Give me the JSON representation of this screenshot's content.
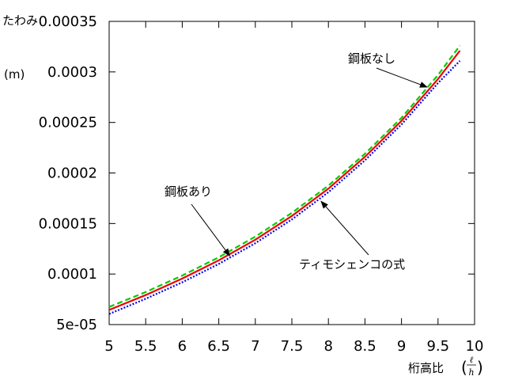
{
  "chart_data": {
    "type": "line",
    "xlabel": "桁高比",
    "xlabel_fraction": {
      "numerator": "ℓ",
      "denominator": "h"
    },
    "ylabel_lines": [
      "たわみ",
      "(m)"
    ],
    "xlim": [
      5,
      10
    ],
    "ylim": [
      5e-05,
      0.00035
    ],
    "xticks": [
      5,
      5.5,
      6,
      6.5,
      7,
      7.5,
      8,
      8.5,
      9,
      9.5,
      10
    ],
    "xtick_labels": [
      "5",
      "5.5",
      "6",
      "6.5",
      "7",
      "7.5",
      "8",
      "8.5",
      "9",
      "9.5",
      "10"
    ],
    "yticks": [
      5e-05,
      0.0001,
      0.00015,
      0.0002,
      0.00025,
      0.0003,
      0.00035
    ],
    "ytick_labels": [
      "5e-05",
      "0.0001",
      "0.00015",
      "0.0002",
      "0.00025",
      "0.0003",
      "0.00035"
    ],
    "grid": false,
    "series": [
      {
        "key": "no_plate",
        "color": "#00cc00",
        "dash": "dashed",
        "x": [
          5,
          5.5,
          6,
          6.5,
          7,
          7.5,
          8,
          8.5,
          9,
          9.5,
          9.8
        ],
        "y": [
          6.75e-05,
          8.22e-05,
          9.85e-05,
          0.0001166,
          0.000137,
          0.0001605,
          0.0001875,
          0.000219,
          0.0002545,
          0.000297,
          0.000326
        ]
      },
      {
        "key": "with_plate",
        "color": "#ee0000",
        "dash": "solid",
        "x": [
          5,
          5.5,
          6,
          6.5,
          7,
          7.5,
          8,
          8.5,
          9,
          9.5,
          9.8
        ],
        "y": [
          6.45e-05,
          7.92e-05,
          9.55e-05,
          0.0001136,
          0.000134,
          0.0001575,
          0.0001845,
          0.000216,
          0.0002515,
          0.000293,
          0.000321
        ]
      },
      {
        "key": "timoshenko",
        "color": "#0000ee",
        "dash": "dotted",
        "x": [
          5,
          5.5,
          6,
          6.5,
          7,
          7.5,
          8,
          8.5,
          9,
          9.5,
          9.8
        ],
        "y": [
          6.05e-05,
          7.55e-05,
          9.18e-05,
          0.00011,
          0.0001305,
          0.000154,
          0.000181,
          0.0002125,
          0.000248,
          0.000289,
          0.000311
        ]
      }
    ],
    "annotations": [
      {
        "key": "no_plate",
        "text": "鋼板なし",
        "arrow_to": [
          9.35,
          0.000285
        ]
      },
      {
        "key": "with_plate",
        "text": "鋼板あり",
        "arrow_to": [
          6.65,
          0.000118
        ]
      },
      {
        "key": "timoshenko",
        "text": "ティモシェンコの式",
        "arrow_to": [
          7.9,
          0.000172
        ]
      }
    ]
  }
}
